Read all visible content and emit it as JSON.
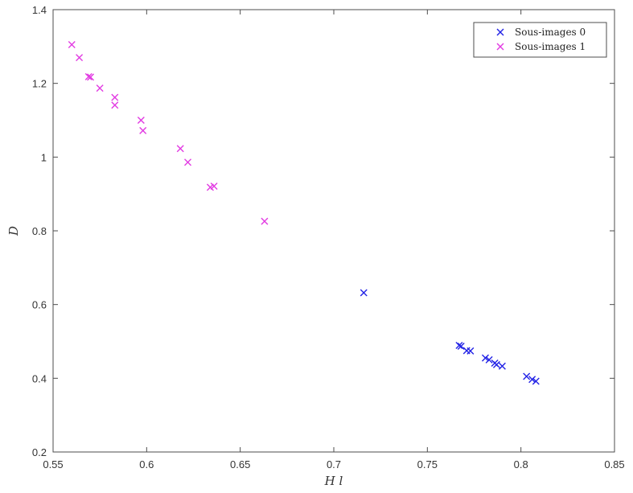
{
  "chart_data": {
    "type": "scatter",
    "xlabel": "H l",
    "ylabel": "D",
    "xlim": [
      0.55,
      0.85
    ],
    "ylim": [
      0.2,
      1.4
    ],
    "xticks": [
      "0.55",
      "0.6",
      "0.65",
      "0.7",
      "0.75",
      "0.8",
      "0.85"
    ],
    "yticks": [
      "0.2",
      "0.4",
      "0.6",
      "0.8",
      "1",
      "1.2",
      "1.4"
    ],
    "grid": false,
    "legend_position": "top-right",
    "marker": "x",
    "series": [
      {
        "name": "Sous-images 0",
        "color": "#2323e6",
        "points": [
          [
            0.716,
            0.632
          ],
          [
            0.767,
            0.489
          ],
          [
            0.768,
            0.487
          ],
          [
            0.771,
            0.475
          ],
          [
            0.773,
            0.474
          ],
          [
            0.781,
            0.455
          ],
          [
            0.783,
            0.45
          ],
          [
            0.786,
            0.441
          ],
          [
            0.787,
            0.437
          ],
          [
            0.79,
            0.433
          ],
          [
            0.803,
            0.405
          ],
          [
            0.806,
            0.397
          ],
          [
            0.808,
            0.392
          ]
        ]
      },
      {
        "name": "Sous-images 1",
        "color": "#e23be2",
        "points": [
          [
            0.56,
            1.305
          ],
          [
            0.564,
            1.27
          ],
          [
            0.569,
            1.218
          ],
          [
            0.57,
            1.217
          ],
          [
            0.575,
            1.187
          ],
          [
            0.583,
            1.162
          ],
          [
            0.583,
            1.141
          ],
          [
            0.597,
            1.1
          ],
          [
            0.598,
            1.072
          ],
          [
            0.618,
            1.023
          ],
          [
            0.622,
            0.986
          ],
          [
            0.634,
            0.918
          ],
          [
            0.636,
            0.921
          ],
          [
            0.663,
            0.826
          ]
        ]
      }
    ]
  }
}
